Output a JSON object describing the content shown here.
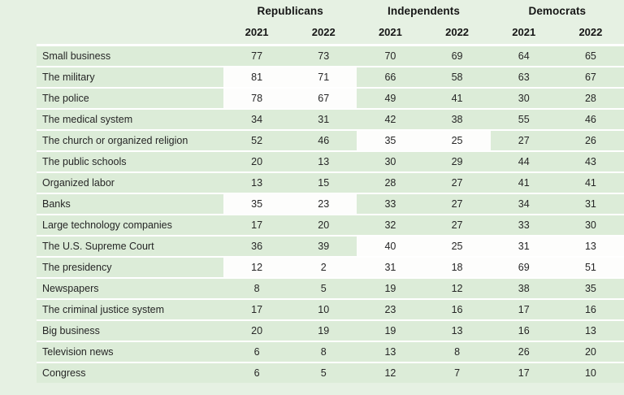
{
  "colors": {
    "page_bg": "#e6f1e3",
    "row_bg": "#dcecd8",
    "highlight_bg": "#fdfdfc",
    "separator": "#ffffff",
    "text": "#262626",
    "header_text": "#161616"
  },
  "chart_data": {
    "type": "table",
    "column_groups": [
      "Republicans",
      "Independents",
      "Democrats"
    ],
    "year_columns": [
      "2021",
      "2022",
      "2021",
      "2022",
      "2021",
      "2022"
    ],
    "highlight_note": "highlight lists which party-group cell pairs are shown on white background",
    "rows": [
      {
        "label": "Small business",
        "values": [
          77,
          73,
          70,
          69,
          64,
          65
        ],
        "highlight": []
      },
      {
        "label": "The military",
        "values": [
          81,
          71,
          66,
          58,
          63,
          67
        ],
        "highlight": [
          "rep"
        ]
      },
      {
        "label": "The police",
        "values": [
          78,
          67,
          49,
          41,
          30,
          28
        ],
        "highlight": [
          "rep"
        ]
      },
      {
        "label": "The medical system",
        "values": [
          34,
          31,
          42,
          38,
          55,
          46
        ],
        "highlight": []
      },
      {
        "label": "The church or organized religion",
        "values": [
          52,
          46,
          35,
          25,
          27,
          26
        ],
        "highlight": [
          "ind"
        ]
      },
      {
        "label": "The public schools",
        "values": [
          20,
          13,
          30,
          29,
          44,
          43
        ],
        "highlight": []
      },
      {
        "label": "Organized labor",
        "values": [
          13,
          15,
          28,
          27,
          41,
          41
        ],
        "highlight": []
      },
      {
        "label": "Banks",
        "values": [
          35,
          23,
          33,
          27,
          34,
          31
        ],
        "highlight": [
          "rep"
        ]
      },
      {
        "label": "Large technology companies",
        "values": [
          17,
          20,
          32,
          27,
          33,
          30
        ],
        "highlight": []
      },
      {
        "label": "The U.S. Supreme Court",
        "values": [
          36,
          39,
          40,
          25,
          31,
          13
        ],
        "highlight": [
          "ind",
          "dem"
        ]
      },
      {
        "label": "The presidency",
        "values": [
          12,
          2,
          31,
          18,
          69,
          51
        ],
        "highlight": [
          "rep",
          "ind",
          "dem"
        ]
      },
      {
        "label": "Newspapers",
        "values": [
          8,
          5,
          19,
          12,
          38,
          35
        ],
        "highlight": []
      },
      {
        "label": "The criminal justice system",
        "values": [
          17,
          10,
          23,
          16,
          17,
          16
        ],
        "highlight": []
      },
      {
        "label": "Big business",
        "values": [
          20,
          19,
          19,
          13,
          16,
          13
        ],
        "highlight": []
      },
      {
        "label": "Television news",
        "values": [
          6,
          8,
          13,
          8,
          26,
          20
        ],
        "highlight": []
      },
      {
        "label": "Congress",
        "values": [
          6,
          5,
          12,
          7,
          17,
          10
        ],
        "highlight": []
      }
    ]
  }
}
